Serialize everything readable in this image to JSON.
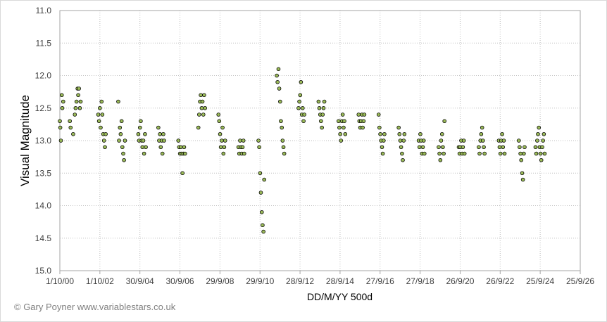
{
  "chart_data": {
    "type": "scatter",
    "xlabel": "DD/M/YY  500d",
    "ylabel": "Visual Magnitude",
    "y_reversed": true,
    "ylim": [
      11.0,
      15.0
    ],
    "y_ticks": [
      "11.0",
      "11.5",
      "12.0",
      "12.5",
      "13.0",
      "13.5",
      "14.0",
      "14.5",
      "15.0"
    ],
    "x_tick_labels": [
      "1/10/00",
      "1/10/02",
      "30/9/04",
      "30/9/06",
      "29/9/08",
      "29/9/10",
      "28/9/12",
      "28/9/14",
      "27/9/16",
      "27/9/18",
      "26/9/20",
      "26/9/22",
      "25/9/24",
      "25/9/26"
    ],
    "grid": "vertical and horizontal dotted",
    "marker": {
      "fill": "#9bbb59",
      "stroke": "#000000"
    },
    "series": [
      {
        "points": [
          [
            "1/10/00",
            12.7
          ],
          [
            "9/10/00",
            12.8
          ],
          [
            "20/10/00",
            13.0
          ],
          [
            "5/11/00",
            12.3
          ],
          [
            "15/11/00",
            12.5
          ],
          [
            "1/12/00",
            12.4
          ],
          [
            "1/4/01",
            12.7
          ],
          [
            "15/4/01",
            12.8
          ],
          [
            "1/6/01",
            12.9
          ],
          [
            "1/7/01",
            12.6
          ],
          [
            "15/7/01",
            12.5
          ],
          [
            "1/8/01",
            12.4
          ],
          [
            "20/8/01",
            12.2
          ],
          [
            "1/9/01",
            12.3
          ],
          [
            "15/9/01",
            12.2
          ],
          [
            "1/10/01",
            12.5
          ],
          [
            "15/10/01",
            12.4
          ],
          [
            "1/9/02",
            12.6
          ],
          [
            "15/9/02",
            12.7
          ],
          [
            "1/10/02",
            12.5
          ],
          [
            "15/10/02",
            12.8
          ],
          [
            "1/11/02",
            12.4
          ],
          [
            "15/11/02",
            12.6
          ],
          [
            "1/12/02",
            12.9
          ],
          [
            "15/12/02",
            13.0
          ],
          [
            "1/1/03",
            13.1
          ],
          [
            "15/1/03",
            12.9
          ],
          [
            "1/9/03",
            12.4
          ],
          [
            "15/9/03",
            13.0
          ],
          [
            "1/10/03",
            12.8
          ],
          [
            "15/10/03",
            12.9
          ],
          [
            "1/11/03",
            12.7
          ],
          [
            "15/11/03",
            13.1
          ],
          [
            "1/12/03",
            13.2
          ],
          [
            "15/12/03",
            13.3
          ],
          [
            "1/1/04",
            13.0
          ],
          [
            "1/9/04",
            12.9
          ],
          [
            "15/9/04",
            13.0
          ],
          [
            "1/10/04",
            12.8
          ],
          [
            "15/10/04",
            12.7
          ],
          [
            "1/11/04",
            13.0
          ],
          [
            "15/11/04",
            13.1
          ],
          [
            "1/12/04",
            13.0
          ],
          [
            "15/12/04",
            13.2
          ],
          [
            "1/1/05",
            12.9
          ],
          [
            "15/1/05",
            13.1
          ],
          [
            "1/9/05",
            12.8
          ],
          [
            "15/9/05",
            13.0
          ],
          [
            "1/10/05",
            12.9
          ],
          [
            "15/10/05",
            13.1
          ],
          [
            "1/11/05",
            13.0
          ],
          [
            "15/11/05",
            13.2
          ],
          [
            "1/12/05",
            12.9
          ],
          [
            "15/12/05",
            13.0
          ],
          [
            "1/9/06",
            13.0
          ],
          [
            "15/9/06",
            13.1
          ],
          [
            "1/10/06",
            13.2
          ],
          [
            "15/10/06",
            13.1
          ],
          [
            "1/11/06",
            13.2
          ],
          [
            "15/11/06",
            13.5
          ],
          [
            "1/12/06",
            13.2
          ],
          [
            "15/12/06",
            13.1
          ],
          [
            "1/1/07",
            13.2
          ],
          [
            "1/9/07",
            12.8
          ],
          [
            "15/9/07",
            12.6
          ],
          [
            "1/10/07",
            12.4
          ],
          [
            "15/10/07",
            12.3
          ],
          [
            "1/11/07",
            12.5
          ],
          [
            "15/11/07",
            12.4
          ],
          [
            "1/12/07",
            12.6
          ],
          [
            "15/12/07",
            12.3
          ],
          [
            "1/1/08",
            12.5
          ],
          [
            "1/9/08",
            12.6
          ],
          [
            "15/9/08",
            12.7
          ],
          [
            "1/10/08",
            12.9
          ],
          [
            "15/10/08",
            13.1
          ],
          [
            "1/11/08",
            13.0
          ],
          [
            "15/11/08",
            12.8
          ],
          [
            "1/12/08",
            13.2
          ],
          [
            "15/12/08",
            13.1
          ],
          [
            "1/1/09",
            13.0
          ],
          [
            "1/9/09",
            13.1
          ],
          [
            "15/9/09",
            13.2
          ],
          [
            "1/10/09",
            13.0
          ],
          [
            "15/10/09",
            13.1
          ],
          [
            "1/11/09",
            13.2
          ],
          [
            "15/11/09",
            13.1
          ],
          [
            "1/12/09",
            13.0
          ],
          [
            "15/12/09",
            13.2
          ],
          [
            "1/9/10",
            13.0
          ],
          [
            "15/9/10",
            13.1
          ],
          [
            "1/10/10",
            13.5
          ],
          [
            "15/10/10",
            13.8
          ],
          [
            "1/11/10",
            14.1
          ],
          [
            "15/11/10",
            14.3
          ],
          [
            "1/12/10",
            14.4
          ],
          [
            "15/12/10",
            13.6
          ],
          [
            "1/8/11",
            12.0
          ],
          [
            "15/8/11",
            12.1
          ],
          [
            "1/9/11",
            11.9
          ],
          [
            "15/9/11",
            12.2
          ],
          [
            "1/10/11",
            12.4
          ],
          [
            "15/10/11",
            12.7
          ],
          [
            "1/11/11",
            12.8
          ],
          [
            "15/11/11",
            13.0
          ],
          [
            "1/12/11",
            13.1
          ],
          [
            "15/12/11",
            13.2
          ],
          [
            "1/9/12",
            12.5
          ],
          [
            "15/9/12",
            12.4
          ],
          [
            "1/10/12",
            12.3
          ],
          [
            "15/10/12",
            12.1
          ],
          [
            "1/11/12",
            12.6
          ],
          [
            "15/11/12",
            12.5
          ],
          [
            "1/12/12",
            12.7
          ],
          [
            "15/12/12",
            12.6
          ],
          [
            "1/9/13",
            12.4
          ],
          [
            "15/9/13",
            12.5
          ],
          [
            "1/10/13",
            12.6
          ],
          [
            "15/10/13",
            12.7
          ],
          [
            "1/11/13",
            12.8
          ],
          [
            "15/11/13",
            12.6
          ],
          [
            "1/12/13",
            12.5
          ],
          [
            "15/12/13",
            12.4
          ],
          [
            "1/9/14",
            12.7
          ],
          [
            "15/9/14",
            12.8
          ],
          [
            "1/10/14",
            12.9
          ],
          [
            "15/10/14",
            13.0
          ],
          [
            "1/11/14",
            12.7
          ],
          [
            "15/11/14",
            12.6
          ],
          [
            "1/12/14",
            12.8
          ],
          [
            "15/12/14",
            12.7
          ],
          [
            "1/1/15",
            12.9
          ],
          [
            "1/9/15",
            12.6
          ],
          [
            "15/9/15",
            12.7
          ],
          [
            "1/10/15",
            12.8
          ],
          [
            "15/10/15",
            12.7
          ],
          [
            "1/11/15",
            12.6
          ],
          [
            "15/11/15",
            12.8
          ],
          [
            "1/12/15",
            12.7
          ],
          [
            "15/12/15",
            12.6
          ],
          [
            "1/9/16",
            12.6
          ],
          [
            "15/9/16",
            12.8
          ],
          [
            "1/10/16",
            12.9
          ],
          [
            "15/10/16",
            13.0
          ],
          [
            "1/11/16",
            13.1
          ],
          [
            "15/11/16",
            13.2
          ],
          [
            "1/12/16",
            13.0
          ],
          [
            "15/12/16",
            12.9
          ],
          [
            "1/9/17",
            12.8
          ],
          [
            "15/9/17",
            12.9
          ],
          [
            "1/10/17",
            13.0
          ],
          [
            "15/10/17",
            13.1
          ],
          [
            "1/11/17",
            13.2
          ],
          [
            "15/11/17",
            13.3
          ],
          [
            "1/12/17",
            13.0
          ],
          [
            "15/12/17",
            12.9
          ],
          [
            "1/9/18",
            13.0
          ],
          [
            "15/9/18",
            13.1
          ],
          [
            "1/10/18",
            12.9
          ],
          [
            "15/10/18",
            13.0
          ],
          [
            "1/11/18",
            13.2
          ],
          [
            "15/11/18",
            13.1
          ],
          [
            "1/12/18",
            13.0
          ],
          [
            "15/12/18",
            13.2
          ],
          [
            "1/9/19",
            13.1
          ],
          [
            "15/9/19",
            13.2
          ],
          [
            "1/10/19",
            13.3
          ],
          [
            "15/10/19",
            13.0
          ],
          [
            "1/11/19",
            12.9
          ],
          [
            "15/11/19",
            13.1
          ],
          [
            "1/12/19",
            13.2
          ],
          [
            "15/12/19",
            12.7
          ],
          [
            "1/9/20",
            13.1
          ],
          [
            "15/9/20",
            13.2
          ],
          [
            "1/10/20",
            13.1
          ],
          [
            "15/10/20",
            13.0
          ],
          [
            "1/11/20",
            13.2
          ],
          [
            "15/11/20",
            13.1
          ],
          [
            "1/12/20",
            13.0
          ],
          [
            "15/12/20",
            13.2
          ],
          [
            "1/9/21",
            13.1
          ],
          [
            "15/9/21",
            13.2
          ],
          [
            "1/10/21",
            13.0
          ],
          [
            "15/10/21",
            12.9
          ],
          [
            "1/11/21",
            12.8
          ],
          [
            "15/11/21",
            13.0
          ],
          [
            "1/12/21",
            13.1
          ],
          [
            "15/12/21",
            13.2
          ],
          [
            "1/9/22",
            13.0
          ],
          [
            "15/9/22",
            13.1
          ],
          [
            "1/10/22",
            13.2
          ],
          [
            "15/10/22",
            13.0
          ],
          [
            "1/11/22",
            12.9
          ],
          [
            "15/11/22",
            13.1
          ],
          [
            "1/12/22",
            13.0
          ],
          [
            "15/12/22",
            13.2
          ],
          [
            "1/9/23",
            13.0
          ],
          [
            "15/9/23",
            13.1
          ],
          [
            "1/10/23",
            13.2
          ],
          [
            "15/10/23",
            13.3
          ],
          [
            "1/11/23",
            13.5
          ],
          [
            "15/11/23",
            13.6
          ],
          [
            "1/12/23",
            13.2
          ],
          [
            "15/12/23",
            13.1
          ],
          [
            "1/7/24",
            13.1
          ],
          [
            "15/7/24",
            13.2
          ],
          [
            "1/8/24",
            13.0
          ],
          [
            "15/8/24",
            12.9
          ],
          [
            "1/9/24",
            12.8
          ],
          [
            "15/9/24",
            13.1
          ],
          [
            "1/10/24",
            13.2
          ],
          [
            "15/10/24",
            13.3
          ],
          [
            "1/11/24",
            13.1
          ],
          [
            "15/11/24",
            13.0
          ],
          [
            "1/12/24",
            12.9
          ],
          [
            "15/12/24",
            13.2
          ]
        ]
      }
    ]
  },
  "credit": "© Gary Poyner  www.variablestars.co.uk"
}
